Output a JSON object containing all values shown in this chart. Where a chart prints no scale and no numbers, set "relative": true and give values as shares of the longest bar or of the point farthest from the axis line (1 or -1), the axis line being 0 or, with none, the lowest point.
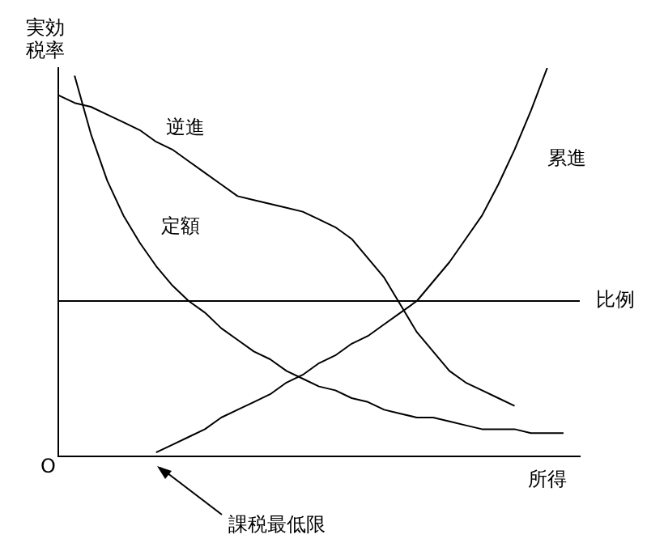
{
  "chart_data": {
    "type": "line",
    "relative": true,
    "xlabel": "所得",
    "ylabel": "実効税率",
    "marker": "none",
    "categories": [
      null,
      null,
      null,
      null,
      null,
      null,
      null,
      null,
      null,
      null,
      null,
      null,
      null,
      null,
      null,
      null,
      null,
      null,
      null,
      null,
      null,
      null,
      null,
      null,
      null,
      null,
      null,
      null,
      null,
      null,
      null,
      null,
      null
    ],
    "series": [
      {
        "name": "逆進",
        "color": "#000000",
        "values": [
          0.93,
          0.91,
          0.9,
          0.88,
          0.86,
          0.84,
          0.81,
          0.79,
          0.76,
          0.73,
          0.7,
          0.67,
          0.66,
          0.65,
          0.64,
          0.63,
          0.61,
          0.59,
          0.56,
          0.51,
          0.46,
          0.39,
          0.32,
          0.27,
          0.22,
          0.19,
          0.17,
          0.15,
          0.13,
          null,
          null,
          null,
          null
        ]
      },
      {
        "name": "定額",
        "color": "#000000",
        "values": [
          null,
          0.98,
          0.83,
          0.71,
          0.62,
          0.55,
          0.49,
          0.44,
          0.4,
          0.37,
          0.33,
          0.3,
          0.27,
          0.25,
          0.22,
          0.2,
          0.18,
          0.17,
          0.15,
          0.14,
          0.12,
          0.11,
          0.1,
          0.1,
          0.09,
          0.08,
          0.07,
          0.07,
          0.07,
          0.06,
          0.06,
          0.06,
          null
        ]
      },
      {
        "name": "累進",
        "color": "#000000",
        "values": [
          null,
          null,
          null,
          null,
          null,
          null,
          0.01,
          0.03,
          0.05,
          0.07,
          0.1,
          0.12,
          0.14,
          0.16,
          0.19,
          0.21,
          0.24,
          0.26,
          0.29,
          0.31,
          0.34,
          0.37,
          0.4,
          0.45,
          0.5,
          0.56,
          0.62,
          0.7,
          0.79,
          0.89,
          1,
          null,
          null
        ]
      },
      {
        "name": "比例",
        "color": "#000000",
        "values": [
          0.4,
          0.4,
          0.4,
          0.4,
          0.4,
          0.4,
          0.4,
          0.4,
          0.4,
          0.4,
          0.4,
          0.4,
          0.4,
          0.4,
          0.4,
          0.4,
          0.4,
          0.4,
          0.4,
          0.4,
          0.4,
          0.4,
          0.4,
          0.4,
          0.4,
          0.4,
          0.4,
          0.4,
          0.4,
          0.4,
          0.4,
          0.4,
          0.4
        ]
      }
    ],
    "annotations": [
      "O",
      "課税最低限"
    ]
  }
}
